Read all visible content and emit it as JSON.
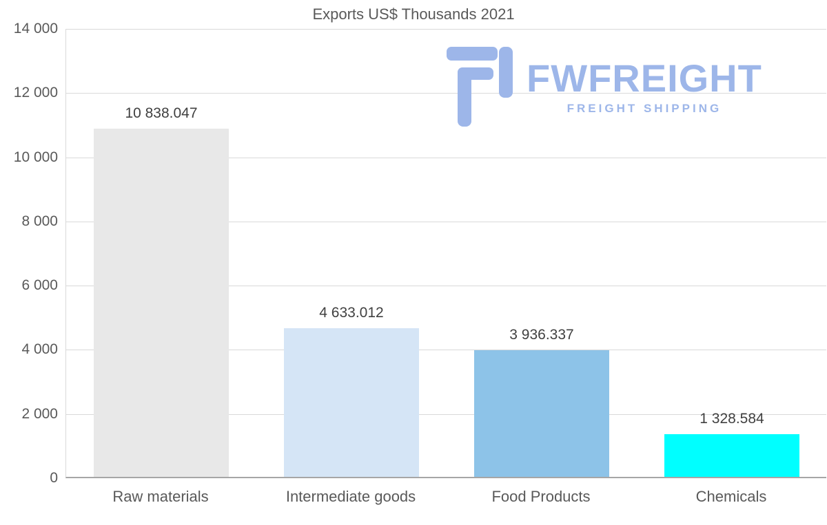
{
  "chart_data": {
    "type": "bar",
    "title": "Exports US$ Thousands 2021",
    "categories": [
      "Raw materials",
      "Intermediate goods",
      "Food Products",
      "Chemicals"
    ],
    "values": [
      10838.047,
      4633.012,
      3936.337,
      1328.584
    ],
    "value_labels": [
      "10 838.047",
      "4 633.012",
      "3 936.337",
      "1 328.584"
    ],
    "bar_colors": [
      "#e8e8e8",
      "#d5e5f6",
      "#8dc3e8",
      "#00ffff"
    ],
    "xlabel": "",
    "ylabel": "",
    "ylim": [
      0,
      14000
    ],
    "ytick_step": 2000,
    "ytick_labels": [
      "0",
      "2 000",
      "4 000",
      "6 000",
      "8 000",
      "10 000",
      "12 000",
      "14 000"
    ],
    "grid": true,
    "legend": "none",
    "colors": {
      "grid": "#d9d9d9",
      "axis": "#a6a6a6",
      "tick_text": "#595959",
      "value_text": "#404040",
      "title_text": "#595959"
    }
  },
  "watermark": {
    "name": "FWFREIGHT",
    "tagline": "FREIGHT SHIPPING",
    "color": "#9db6e9"
  }
}
